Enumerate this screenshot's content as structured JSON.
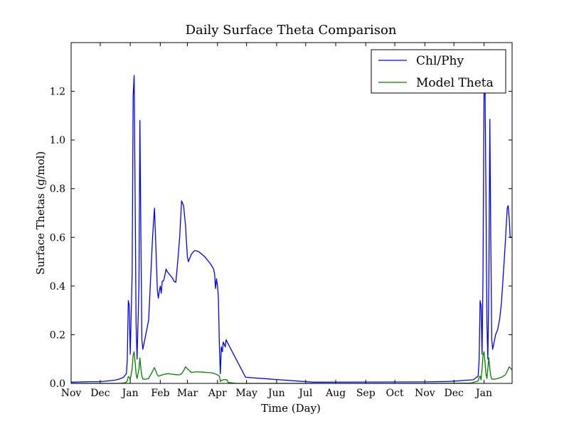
{
  "chart_data": {
    "type": "line",
    "title": "Daily Surface Theta Comparison",
    "xlabel": "Time (Day)",
    "ylabel": "Surface Thetas (g/mol)",
    "x_ticks": [
      "Nov",
      "Dec",
      "Jan",
      "Feb",
      "Mar",
      "Apr",
      "May",
      "Jun",
      "Jul",
      "Aug",
      "Sep",
      "Oct",
      "Nov",
      "Dec",
      "Jan"
    ],
    "x_tick_days": [
      0,
      30,
      61,
      92,
      120,
      151,
      181,
      212,
      242,
      273,
      304,
      334,
      365,
      395,
      426
    ],
    "xlim": [
      0,
      455
    ],
    "y_ticks": [
      "0.0",
      "0.2",
      "0.4",
      "0.6",
      "0.8",
      "1.0",
      "1.2"
    ],
    "ylim": [
      0,
      1.4
    ],
    "legend_position": "top-right",
    "grid": false,
    "series": [
      {
        "name": "Chl/Phy",
        "color": "#0000ff",
        "x": [
          0,
          20,
          30,
          45,
          50,
          54,
          57,
          58,
          59,
          60,
          61,
          63,
          64,
          65,
          66,
          67,
          68,
          70,
          71,
          72,
          73,
          74,
          75,
          76,
          77,
          78,
          80,
          84,
          86,
          88,
          89,
          90,
          91,
          92,
          93,
          94,
          95,
          96,
          97,
          98,
          99,
          100,
          101,
          102,
          103,
          104,
          105,
          106,
          108,
          110,
          112,
          114,
          116,
          118,
          119,
          120,
          121,
          122,
          123,
          124,
          126,
          127,
          129,
          132,
          135,
          138,
          141,
          144,
          147,
          148,
          149,
          150,
          151,
          152,
          153,
          154,
          155,
          156,
          157,
          158,
          159,
          160,
          161,
          180,
          250,
          365,
          390,
          415,
          420,
          421,
          422,
          423,
          424,
          425,
          426,
          427,
          428,
          429,
          430,
          431,
          432,
          433,
          434,
          435,
          436,
          437,
          438,
          440,
          442,
          444,
          446,
          448,
          449,
          450,
          451,
          452,
          453,
          454,
          455
        ],
        "values": [
          0.005,
          0.007,
          0.007,
          0.013,
          0.018,
          0.025,
          0.04,
          0.1,
          0.34,
          0.32,
          0.12,
          0.45,
          1.18,
          1.265,
          0.8,
          0.25,
          0.1,
          0.4,
          1.08,
          0.6,
          0.18,
          0.14,
          0.16,
          0.18,
          0.2,
          0.22,
          0.26,
          0.6,
          0.72,
          0.5,
          0.38,
          0.35,
          0.38,
          0.4,
          0.37,
          0.42,
          0.42,
          0.43,
          0.45,
          0.47,
          0.46,
          0.455,
          0.45,
          0.445,
          0.44,
          0.435,
          0.43,
          0.42,
          0.415,
          0.5,
          0.6,
          0.75,
          0.73,
          0.65,
          0.58,
          0.52,
          0.5,
          0.51,
          0.52,
          0.53,
          0.54,
          0.545,
          0.545,
          0.54,
          0.53,
          0.52,
          0.505,
          0.49,
          0.47,
          0.45,
          0.39,
          0.43,
          0.4,
          0.35,
          0.15,
          0.04,
          0.15,
          0.13,
          0.17,
          0.16,
          0.15,
          0.18,
          0.17,
          0.025,
          0.005,
          0.006,
          0.008,
          0.015,
          0.03,
          0.1,
          0.34,
          0.32,
          0.12,
          0.45,
          1.18,
          1.26,
          0.8,
          0.25,
          0.1,
          0.4,
          1.085,
          0.6,
          0.18,
          0.14,
          0.16,
          0.18,
          0.2,
          0.22,
          0.26,
          0.33,
          0.45,
          0.58,
          0.65,
          0.72,
          0.73,
          0.68,
          0.6,
          0.6,
          0.6
        ]
      },
      {
        "name": "Model Theta",
        "color": "#008000",
        "x": [
          0,
          50,
          55,
          57,
          58,
          59,
          60,
          61,
          63,
          64,
          65,
          66,
          67,
          68,
          70,
          71,
          72,
          73,
          74,
          76,
          80,
          84,
          86,
          88,
          89,
          90,
          94,
          97,
          100,
          104,
          108,
          112,
          114,
          116,
          118,
          120,
          124,
          128,
          132,
          136,
          140,
          144,
          148,
          151,
          153,
          154,
          155,
          157,
          159,
          161,
          162,
          170,
          250,
          365,
          412,
          420,
          421,
          422,
          423,
          424,
          425,
          426,
          427,
          428,
          429,
          430,
          431,
          432,
          433,
          434,
          436,
          440,
          444,
          448,
          450,
          452,
          454,
          455
        ],
        "values": [
          0.0,
          0.0,
          0.002,
          0.005,
          0.012,
          0.028,
          0.025,
          0.015,
          0.06,
          0.115,
          0.13,
          0.09,
          0.04,
          0.02,
          0.06,
          0.105,
          0.06,
          0.03,
          0.018,
          0.017,
          0.02,
          0.05,
          0.065,
          0.045,
          0.035,
          0.03,
          0.035,
          0.038,
          0.04,
          0.038,
          0.036,
          0.035,
          0.04,
          0.052,
          0.068,
          0.06,
          0.045,
          0.047,
          0.047,
          0.046,
          0.045,
          0.044,
          0.04,
          0.035,
          0.03,
          0.008,
          0.012,
          0.015,
          0.016,
          0.014,
          0.004,
          0.0,
          0.0,
          0.0,
          0.001,
          0.01,
          0.025,
          0.03,
          0.015,
          0.06,
          0.115,
          0.13,
          0.09,
          0.04,
          0.02,
          0.06,
          0.105,
          0.06,
          0.03,
          0.018,
          0.017,
          0.02,
          0.025,
          0.035,
          0.05,
          0.068,
          0.06,
          0.055
        ]
      }
    ]
  }
}
